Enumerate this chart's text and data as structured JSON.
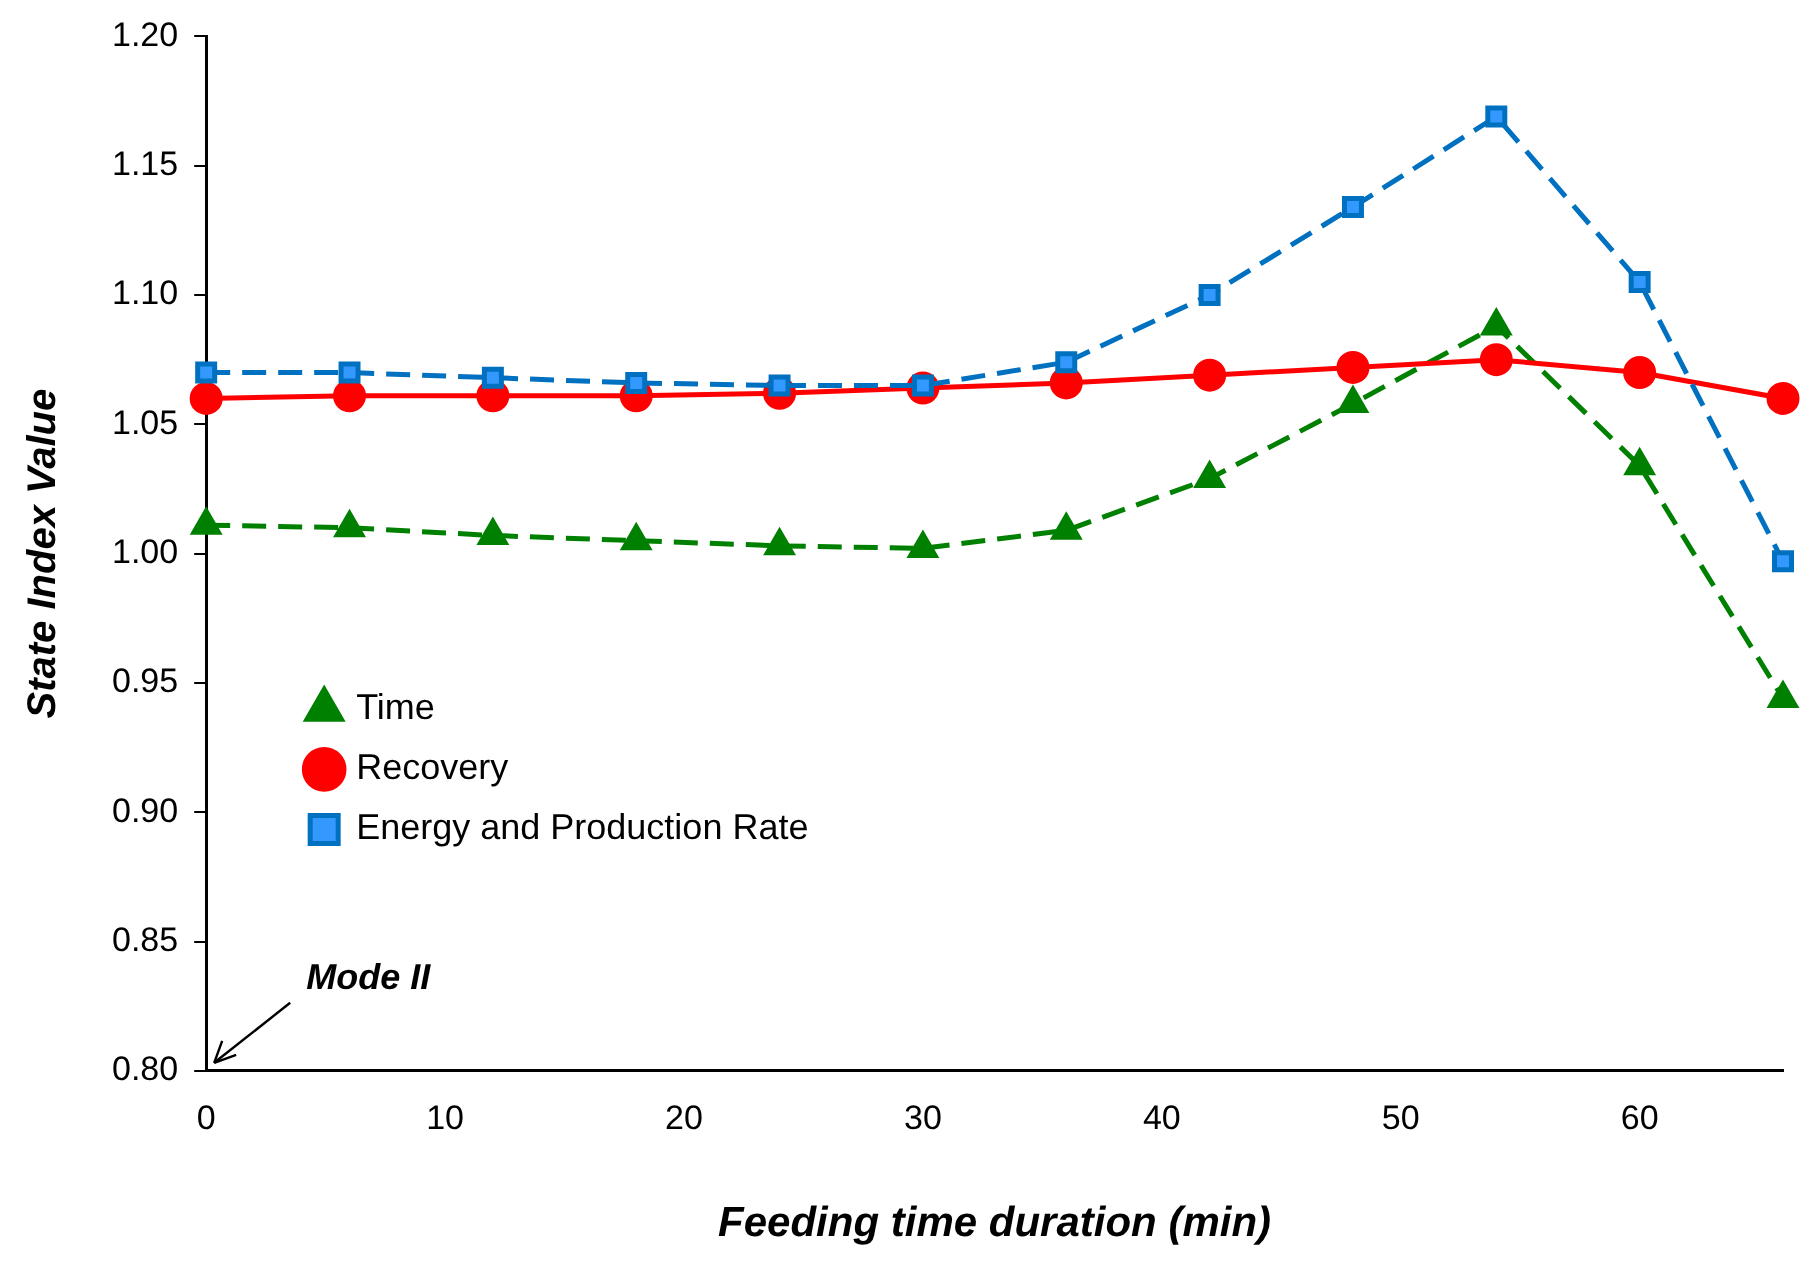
{
  "chart_data": {
    "type": "line",
    "xlabel": "Feeding time duration (min)",
    "ylabel": "State Index Value",
    "x": [
      0,
      6,
      12,
      18,
      24,
      30,
      36,
      42,
      48,
      54,
      60,
      66
    ],
    "series": [
      {
        "name": "Time",
        "color": "#008000",
        "marker": "triangle",
        "line_style": "dashed",
        "values": [
          1.011,
          1.01,
          1.007,
          1.005,
          1.003,
          1.002,
          1.009,
          1.029,
          1.058,
          1.088,
          1.034,
          0.944
        ]
      },
      {
        "name": "Recovery",
        "color": "#ff0000",
        "marker": "circle",
        "line_style": "solid",
        "values": [
          1.06,
          1.061,
          1.061,
          1.061,
          1.062,
          1.064,
          1.066,
          1.069,
          1.072,
          1.075,
          1.07,
          1.06
        ]
      },
      {
        "name": "Energy and Production Rate",
        "color": "#0070c0",
        "marker": "square",
        "line_style": "dashed",
        "values": [
          1.07,
          1.07,
          1.068,
          1.066,
          1.065,
          1.065,
          1.074,
          1.1,
          1.134,
          1.169,
          1.105,
          0.997
        ]
      }
    ],
    "xlim": [
      0,
      66
    ],
    "xticks": [
      0,
      10,
      20,
      30,
      40,
      50,
      60
    ],
    "ylim": [
      0.8,
      1.2
    ],
    "yticks": [
      {
        "value": 0.8,
        "label": "0.80"
      },
      {
        "value": 0.85,
        "label": "0.85"
      },
      {
        "value": 0.9,
        "label": "0.90"
      },
      {
        "value": 0.95,
        "label": "0.95"
      },
      {
        "value": 1.0,
        "label": "1.00"
      },
      {
        "value": 1.05,
        "label": "1.05"
      },
      {
        "value": 1.1,
        "label": "1.10"
      },
      {
        "value": 1.15,
        "label": "1.15"
      },
      {
        "value": 1.2,
        "label": "1.20"
      }
    ],
    "grid": false,
    "legend": "left",
    "annotations": [
      "Mode II"
    ]
  }
}
